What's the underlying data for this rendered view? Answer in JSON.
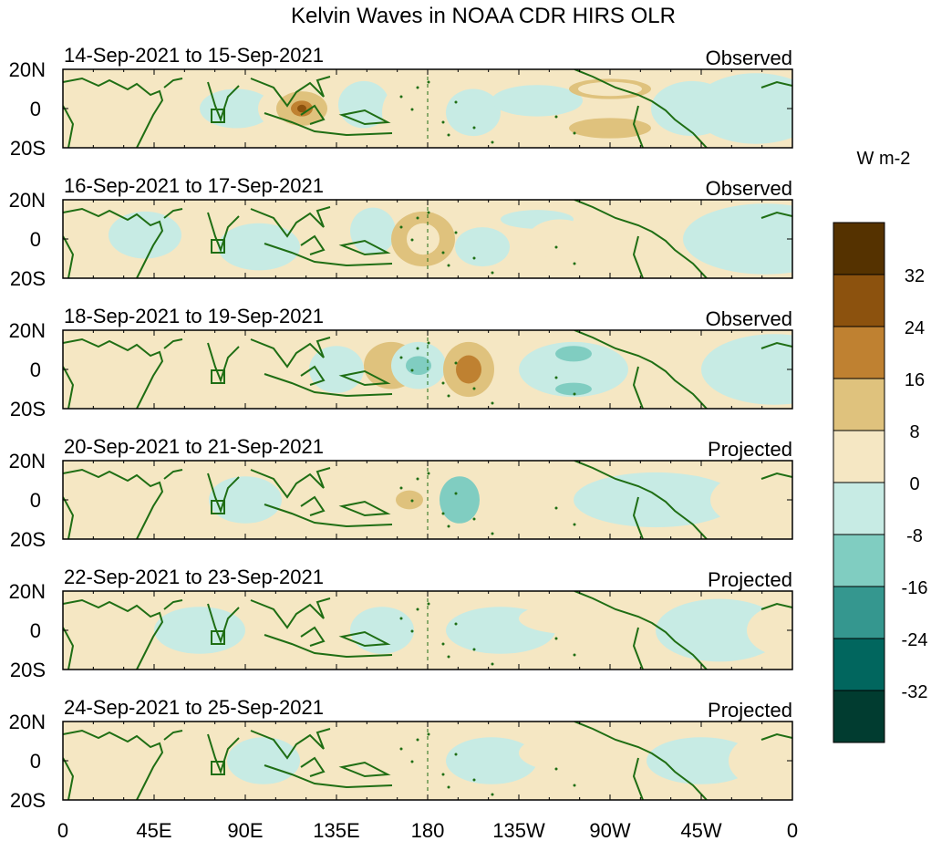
{
  "title": "Kelvin Waves in NOAA CDR HIRS OLR",
  "colorbar": {
    "units": "W m-2",
    "labels": [
      "32",
      "24",
      "16",
      "8",
      "0",
      "-8",
      "-16",
      "-24",
      "-32"
    ],
    "colors": [
      "#553200",
      "#8c520e",
      "#bf8131",
      "#dfc27d",
      "#f5e7c3",
      "#c7ebe4",
      "#80cdc1",
      "#35978f",
      "#01665e",
      "#013c30"
    ]
  },
  "y_ticks": [
    "20N",
    "0",
    "20S"
  ],
  "x_ticks": [
    "0",
    "45E",
    "90E",
    "135E",
    "180",
    "135W",
    "90W",
    "45W",
    "0"
  ],
  "panels": [
    {
      "date": "14-Sep-2021 to 15-Sep-2021",
      "status": "Observed"
    },
    {
      "date": "16-Sep-2021 to 17-Sep-2021",
      "status": "Observed"
    },
    {
      "date": "18-Sep-2021 to 19-Sep-2021",
      "status": "Observed"
    },
    {
      "date": "20-Sep-2021 to 21-Sep-2021",
      "status": "Projected"
    },
    {
      "date": "22-Sep-2021 to 23-Sep-2021",
      "status": "Projected"
    },
    {
      "date": "24-Sep-2021 to 25-Sep-2021",
      "status": "Projected"
    }
  ],
  "colors": {
    "coastline": "#1f6e14",
    "frame": "#000000"
  }
}
